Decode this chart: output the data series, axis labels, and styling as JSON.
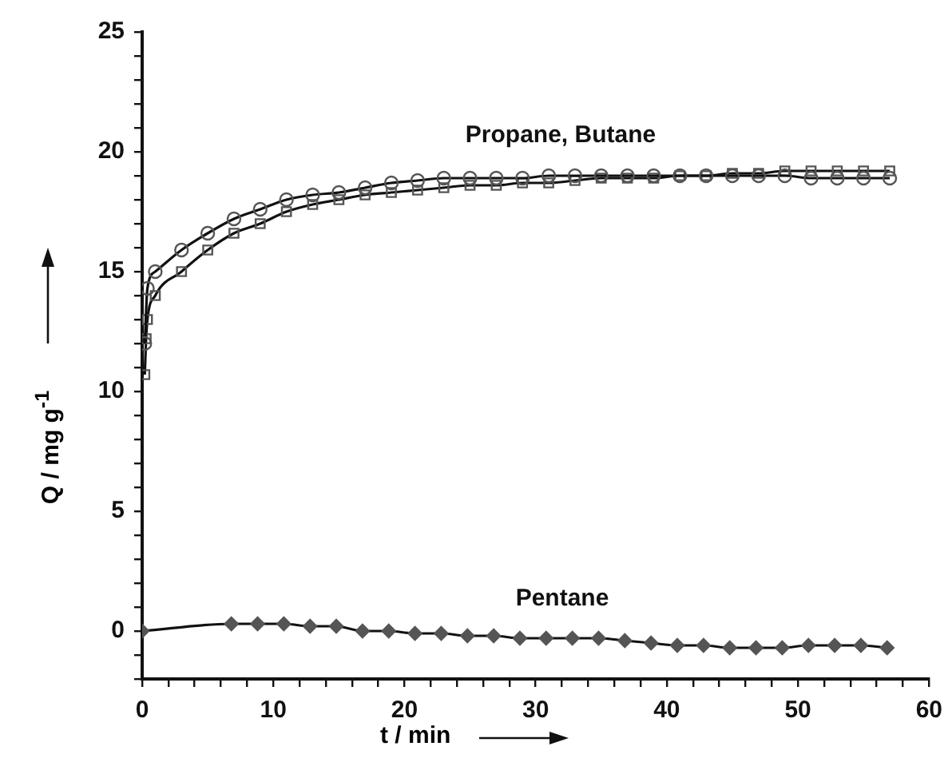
{
  "chart_data": {
    "type": "line",
    "xlabel": "t / min",
    "ylabel": "Q / mg g$^{-1}$",
    "xlim": [
      0,
      60
    ],
    "xticks": [
      0,
      {
        "value": 2,
        "label": null
      },
      {
        "value": 4,
        "label": null
      },
      {
        "value": 6,
        "label": null
      },
      {
        "value": 8,
        "label": null
      },
      10,
      {
        "value": 12,
        "label": null
      },
      {
        "value": 14,
        "label": null
      },
      {
        "value": 16,
        "label": null
      },
      {
        "value": 18,
        "label": null
      },
      20,
      {
        "value": 22,
        "label": null
      },
      {
        "value": 24,
        "label": null
      },
      {
        "value": 26,
        "label": null
      },
      {
        "value": 28,
        "label": null
      },
      30,
      {
        "value": 32,
        "label": null
      },
      {
        "value": 34,
        "label": null
      },
      {
        "value": 36,
        "label": null
      },
      {
        "value": 38,
        "label": null
      },
      40,
      {
        "value": 42,
        "label": null
      },
      {
        "value": 44,
        "label": null
      },
      {
        "value": 46,
        "label": null
      },
      {
        "value": 48,
        "label": null
      },
      50,
      {
        "value": 52,
        "label": null
      },
      {
        "value": 54,
        "label": null
      },
      {
        "value": 56,
        "label": null
      },
      {
        "value": 58,
        "label": null
      },
      60
    ],
    "ylim": [
      -2,
      25
    ],
    "yticks": [
      {
        "value": -2,
        "label": null
      },
      {
        "value": -1,
        "label": null
      },
      0,
      {
        "value": 1,
        "label": null
      },
      {
        "value": 2,
        "label": null
      },
      {
        "value": 3,
        "label": null
      },
      {
        "value": 4,
        "label": null
      },
      5,
      {
        "value": 6,
        "label": null
      },
      {
        "value": 7,
        "label": null
      },
      {
        "value": 8,
        "label": null
      },
      {
        "value": 9,
        "label": null
      },
      10,
      {
        "value": 11,
        "label": null
      },
      {
        "value": 12,
        "label": null
      },
      {
        "value": 13,
        "label": null
      },
      {
        "value": 14,
        "label": null
      },
      15,
      {
        "value": 16,
        "label": null
      },
      {
        "value": 17,
        "label": null
      },
      {
        "value": 18,
        "label": null
      },
      {
        "value": 19,
        "label": null
      },
      20,
      {
        "value": 21,
        "label": null
      },
      {
        "value": 22,
        "label": null
      },
      {
        "value": 23,
        "label": null
      },
      {
        "value": 24,
        "label": null
      },
      25
    ],
    "grid": false,
    "legend": false,
    "line_style": "solid",
    "series": [
      {
        "color": "#555555",
        "marker": "circle",
        "x": [
          0.2,
          0.4,
          1,
          3,
          5,
          7,
          9,
          11,
          13,
          15,
          17,
          19,
          21,
          23,
          25,
          27,
          29,
          31,
          33,
          35,
          37,
          39,
          41,
          43,
          45,
          47,
          49,
          51,
          53,
          55,
          57
        ],
        "values": [
          12,
          14.3,
          15,
          15.9,
          16.6,
          17.2,
          17.6,
          18,
          18.2,
          18.3,
          18.5,
          18.7,
          18.8,
          18.9,
          18.9,
          18.9,
          18.9,
          19,
          19,
          19,
          19,
          19,
          19,
          19,
          19,
          19,
          19,
          18.9,
          18.9,
          18.9,
          18.9
        ]
      },
      {
        "color": "#555555",
        "marker": "square",
        "x": [
          0.2,
          0.3,
          0.4,
          1,
          3,
          5,
          7,
          9,
          11,
          13,
          15,
          17,
          19,
          21,
          23,
          25,
          27,
          29,
          31,
          33,
          35,
          37,
          39,
          41,
          43,
          45,
          47,
          49,
          51,
          53,
          55,
          57
        ],
        "values": [
          10.7,
          12.2,
          13,
          14,
          15,
          15.9,
          16.6,
          17,
          17.5,
          17.8,
          18,
          18.2,
          18.3,
          18.4,
          18.5,
          18.6,
          18.6,
          18.7,
          18.7,
          18.8,
          18.9,
          18.9,
          18.9,
          19,
          19,
          19.1,
          19.1,
          19.2,
          19.2,
          19.2,
          19.2,
          19.2
        ]
      },
      {
        "color": "#555555",
        "marker": "diamond",
        "x": [
          0,
          6.8,
          8.8,
          10.8,
          12.8,
          14.8,
          16.8,
          18.8,
          20.8,
          22.8,
          24.8,
          26.8,
          28.8,
          30.8,
          32.8,
          34.8,
          36.8,
          38.8,
          40.8,
          42.8,
          44.8,
          46.8,
          48.8,
          50.8,
          52.8,
          54.8,
          56.8
        ],
        "values": [
          0,
          0.3,
          0.3,
          0.3,
          0.2,
          0.2,
          0,
          0,
          -0.1,
          -0.1,
          -0.2,
          -0.2,
          -0.3,
          -0.3,
          -0.3,
          -0.3,
          -0.4,
          -0.5,
          -0.6,
          -0.6,
          -0.7,
          -0.7,
          -0.7,
          -0.6,
          -0.6,
          -0.6,
          -0.7
        ]
      }
    ],
    "annotations": [
      "Propane, Butane",
      "Pentane"
    ]
  }
}
